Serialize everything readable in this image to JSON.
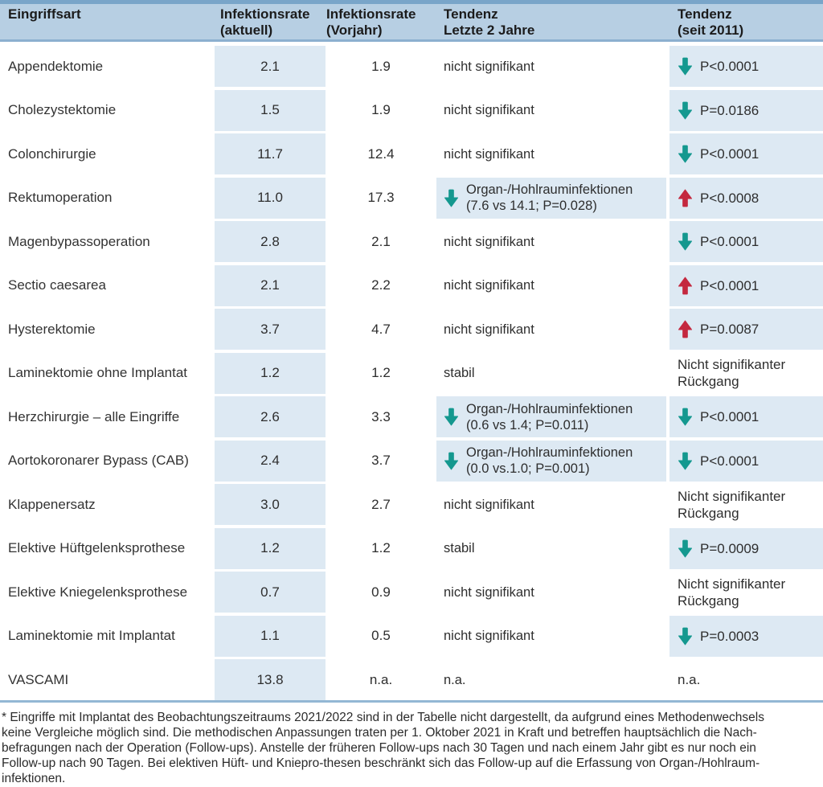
{
  "colors": {
    "teal": "#14988f",
    "red": "#c4283f",
    "header_bg": "#b7cfe3",
    "header_border_top": "#79a5c9",
    "header_border_bottom": "#8cb0cf",
    "cell_bg": "#dde9f3",
    "table_border_bottom": "#93b7d4"
  },
  "table": {
    "headers": [
      {
        "line1": "Eingriffsart",
        "line2": ""
      },
      {
        "line1": "Infektionsrate",
        "line2": "(aktuell)"
      },
      {
        "line1": "Infektionsrate",
        "line2": "(Vorjahr)"
      },
      {
        "line1": "Tendenz",
        "line2": "Letzte 2 Jahre"
      },
      {
        "line1": "Tendenz",
        "line2": "(seit 2011)"
      }
    ],
    "rows": [
      {
        "name": "Appendektomie",
        "rate_current": "2.1",
        "rate_prev": "1.9",
        "trend2y": {
          "arrow": null,
          "color": null,
          "line1": "nicht signifikant",
          "line2": "",
          "highlight": false
        },
        "trend2011": {
          "arrow": "down",
          "color": "teal",
          "text": "P<0.0001",
          "highlight": true
        }
      },
      {
        "name": "Cholezystektomie",
        "rate_current": "1.5",
        "rate_prev": "1.9",
        "trend2y": {
          "arrow": null,
          "color": null,
          "line1": "nicht signifikant",
          "line2": "",
          "highlight": false
        },
        "trend2011": {
          "arrow": "down",
          "color": "teal",
          "text": "P=0.0186",
          "highlight": true
        }
      },
      {
        "name": "Colonchirurgie",
        "rate_current": "11.7",
        "rate_prev": "12.4",
        "trend2y": {
          "arrow": null,
          "color": null,
          "line1": "nicht signifikant",
          "line2": "",
          "highlight": false
        },
        "trend2011": {
          "arrow": "down",
          "color": "teal",
          "text": "P<0.0001",
          "highlight": true
        }
      },
      {
        "name": "Rektumoperation",
        "rate_current": "11.0",
        "rate_prev": "17.3",
        "trend2y": {
          "arrow": "down",
          "color": "teal",
          "line1": "Organ-/Hohlrauminfektionen",
          "line2": "(7.6 vs 14.1; P=0.028)",
          "highlight": true
        },
        "trend2011": {
          "arrow": "up",
          "color": "red",
          "text": "P<0.0008",
          "highlight": true
        }
      },
      {
        "name": "Magenbypassoperation",
        "rate_current": "2.8",
        "rate_prev": "2.1",
        "trend2y": {
          "arrow": null,
          "color": null,
          "line1": "nicht signifikant",
          "line2": "",
          "highlight": false
        },
        "trend2011": {
          "arrow": "down",
          "color": "teal",
          "text": "P<0.0001",
          "highlight": true
        }
      },
      {
        "name": "Sectio caesarea",
        "rate_current": "2.1",
        "rate_prev": "2.2",
        "trend2y": {
          "arrow": null,
          "color": null,
          "line1": "nicht signifikant",
          "line2": "",
          "highlight": false
        },
        "trend2011": {
          "arrow": "up",
          "color": "red",
          "text": "P<0.0001",
          "highlight": true
        }
      },
      {
        "name": "Hysterektomie",
        "rate_current": "3.7",
        "rate_prev": "4.7",
        "trend2y": {
          "arrow": null,
          "color": null,
          "line1": "nicht signifikant",
          "line2": "",
          "highlight": false
        },
        "trend2011": {
          "arrow": "up",
          "color": "red",
          "text": "P=0.0087",
          "highlight": true
        }
      },
      {
        "name": "Laminektomie ohne Implantat",
        "rate_current": "1.2",
        "rate_prev": "1.2",
        "trend2y": {
          "arrow": null,
          "color": null,
          "line1": "stabil",
          "line2": "",
          "highlight": false
        },
        "trend2011": {
          "arrow": null,
          "color": null,
          "text": "Nicht signifikanter Rückgang",
          "highlight": false
        }
      },
      {
        "name": "Herzchirurgie – alle Eingriffe",
        "rate_current": "2.6",
        "rate_prev": "3.3",
        "trend2y": {
          "arrow": "down",
          "color": "teal",
          "line1": "Organ-/Hohlrauminfektionen",
          "line2": "(0.6 vs 1.4; P=0.011)",
          "highlight": true
        },
        "trend2011": {
          "arrow": "down",
          "color": "teal",
          "text": "P<0.0001",
          "highlight": true
        }
      },
      {
        "name": "Aortokoronarer Bypass (CAB)",
        "rate_current": "2.4",
        "rate_prev": "3.7",
        "trend2y": {
          "arrow": "down",
          "color": "teal",
          "line1": "Organ-/Hohlrauminfektionen",
          "line2": "(0.0 vs.1.0; P=0.001)",
          "highlight": true
        },
        "trend2011": {
          "arrow": "down",
          "color": "teal",
          "text": "P<0.0001",
          "highlight": true
        }
      },
      {
        "name": "Klappenersatz",
        "rate_current": "3.0",
        "rate_prev": "2.7",
        "trend2y": {
          "arrow": null,
          "color": null,
          "line1": "nicht signifikant",
          "line2": "",
          "highlight": false
        },
        "trend2011": {
          "arrow": null,
          "color": null,
          "text": "Nicht signifikanter Rückgang",
          "highlight": false
        }
      },
      {
        "name": "Elektive Hüftgelenksprothese",
        "rate_current": "1.2",
        "rate_prev": "1.2",
        "trend2y": {
          "arrow": null,
          "color": null,
          "line1": "stabil",
          "line2": "",
          "highlight": false
        },
        "trend2011": {
          "arrow": "down",
          "color": "teal",
          "text": "P=0.0009",
          "highlight": true
        }
      },
      {
        "name": "Elektive Kniegelenksprothese",
        "rate_current": "0.7",
        "rate_prev": "0.9",
        "trend2y": {
          "arrow": null,
          "color": null,
          "line1": "nicht signifikant",
          "line2": "",
          "highlight": false
        },
        "trend2011": {
          "arrow": null,
          "color": null,
          "text": "Nicht signifikanter Rückgang",
          "highlight": false
        }
      },
      {
        "name": "Laminektomie mit Implantat",
        "rate_current": "1.1",
        "rate_prev": "0.5",
        "trend2y": {
          "arrow": null,
          "color": null,
          "line1": "nicht signifikant",
          "line2": "",
          "highlight": false
        },
        "trend2011": {
          "arrow": "down",
          "color": "teal",
          "text": "P=0.0003",
          "highlight": true
        }
      },
      {
        "name": "VASCAMI",
        "rate_current": "13.8",
        "rate_prev": "n.a.",
        "trend2y": {
          "arrow": null,
          "color": null,
          "line1": "n.a.",
          "line2": "",
          "highlight": false
        },
        "trend2011": {
          "arrow": null,
          "color": null,
          "text": "n.a.",
          "highlight": false
        }
      }
    ]
  },
  "footnote": {
    "lines": [
      "* Eingriffe mit Implantat des Beobachtungszeitraums 2021/2022 sind in der Tabelle nicht dargestellt, da aufgrund eines Methodenwechsels",
      "keine Vergleiche möglich sind. Die methodischen Anpassungen traten per 1. Oktober 2021 in Kraft und betreffen hauptsächlich die Nach-",
      "befragungen nach der Operation (Follow-ups). Anstelle der früheren Follow-ups nach 30 Tagen und nach einem Jahr gibt es nur noch ein",
      "Follow-up nach 90 Tagen. Bei elektiven Hüft- und Kniepro-thesen beschränkt sich das Follow-up auf die Erfassung von Organ-/Hohlraum-",
      "infektionen."
    ]
  }
}
